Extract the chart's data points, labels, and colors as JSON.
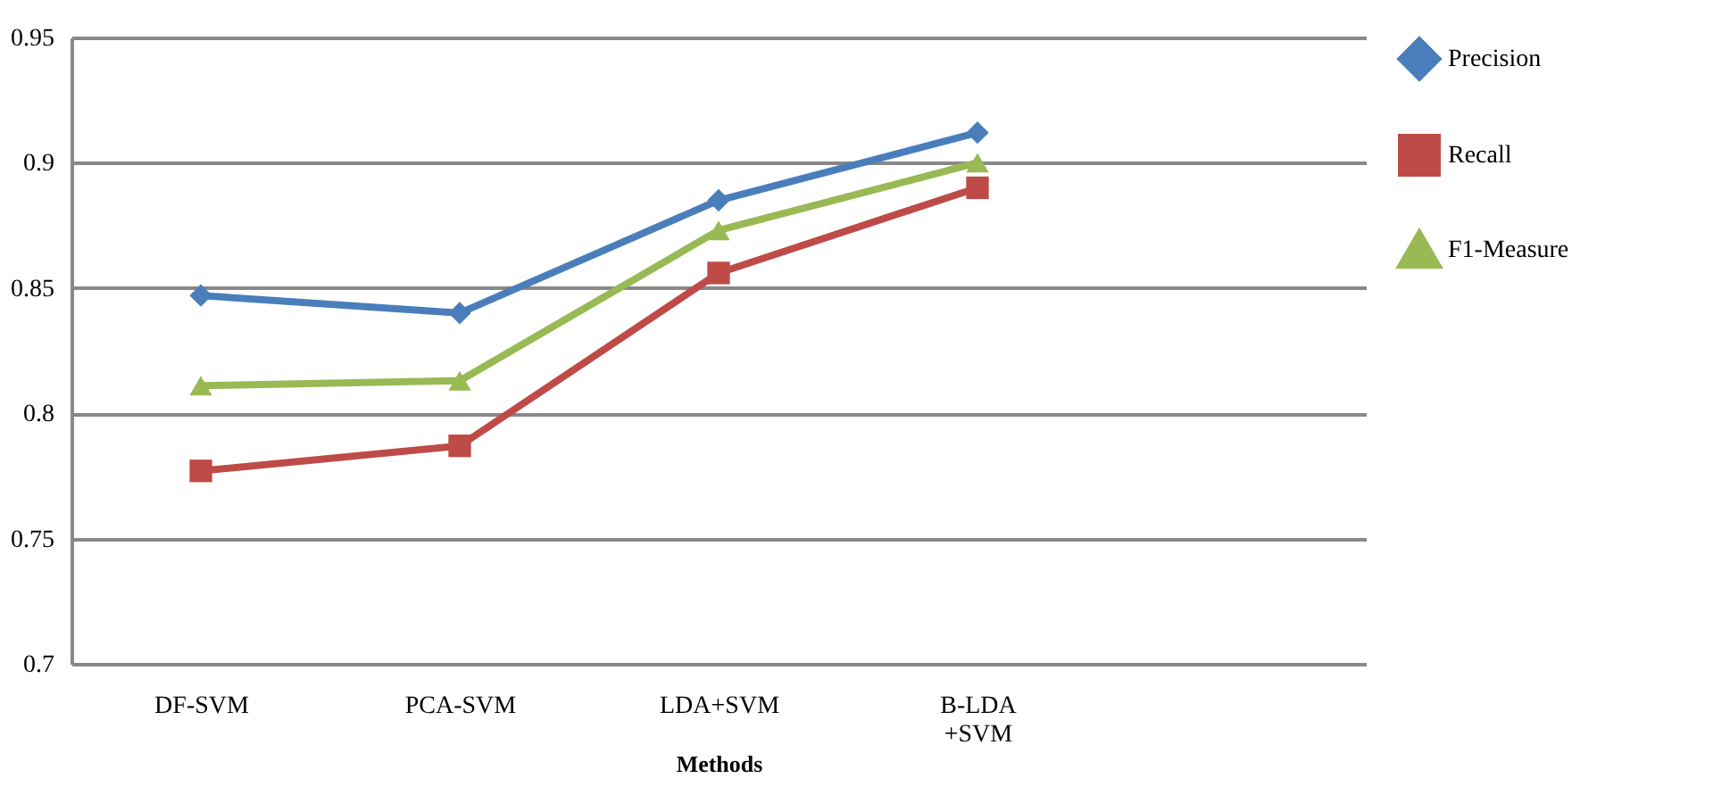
{
  "chart_data": {
    "type": "line",
    "xlabel": "Methods",
    "categories": [
      "DF-SVM",
      "PCA-SVM",
      "LDA+SVM",
      "B-LDA +SVM",
      null
    ],
    "series": [
      {
        "name": "Precision",
        "color": "#4a7ebb",
        "marker": "diamond",
        "values": [
          0.847,
          0.84,
          0.885,
          0.912,
          null
        ]
      },
      {
        "name": "Recall",
        "color": "#be4b48",
        "marker": "square",
        "values": [
          0.777,
          0.787,
          0.856,
          0.89,
          null
        ]
      },
      {
        "name": "F1-Measure",
        "color": "#98b954",
        "marker": "triangle",
        "values": [
          0.811,
          0.813,
          0.873,
          0.9,
          null
        ]
      }
    ],
    "ylim": [
      0.7,
      0.95
    ],
    "yticks": [
      0.7,
      0.75,
      0.8,
      0.85,
      0.9,
      0.95
    ],
    "grid": "y",
    "legend": "right"
  }
}
